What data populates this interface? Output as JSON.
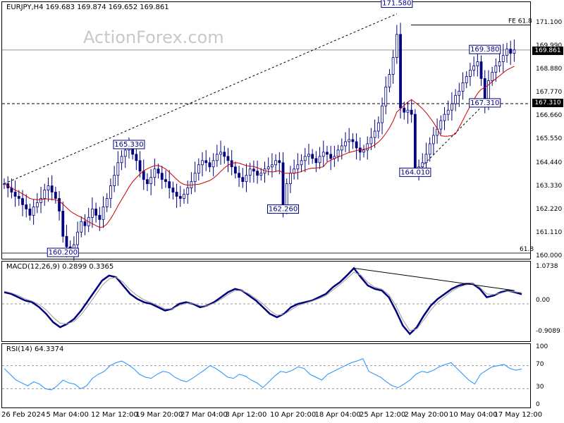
{
  "price_panel": {
    "header": "EURJPY,H4  169.683 169.874 169.652 169.861",
    "watermark": "ActionForex.com",
    "last_price_tag": "169.861",
    "support_tag": "167.310",
    "fe_label": "FE 61.8",
    "fib_label": "61.8",
    "annotations": [
      {
        "text": "171.580",
        "value": 171.58,
        "date_index": 107
      },
      {
        "text": "165.330",
        "value": 165.33,
        "date_index": 34
      },
      {
        "text": "169.380",
        "value": 169.38,
        "date_index": 131
      },
      {
        "text": "167.310",
        "value": 167.31,
        "date_index": 131
      },
      {
        "text": "164.010",
        "value": 164.01,
        "date_index": 112
      },
      {
        "text": "162.260",
        "value": 162.26,
        "date_index": 76
      },
      {
        "text": "160.200",
        "value": 160.2,
        "date_index": 16
      }
    ]
  },
  "macd_panel": {
    "header": "MACD(12,26,9) 0.2899 0.3365",
    "ticks": [
      "1.0738",
      "0.00",
      "-0.9089"
    ]
  },
  "rsi_panel": {
    "header": "RSI(14) 64.3374",
    "ticks": [
      "100",
      "70",
      "30",
      "0"
    ]
  },
  "price_ticks": [
    "171.100",
    "169.990",
    "168.880",
    "167.770",
    "166.660",
    "165.550",
    "164.440",
    "163.330",
    "162.220",
    "161.110",
    "160.000"
  ],
  "time_ticks": [
    "26 Feb 2024",
    "5 Mar 04:00",
    "12 Mar 12:00",
    "19 Mar 20:00",
    "27 Mar 04:00",
    "3 Apr 12:00",
    "10 Apr 20:00",
    "18 Apr 04:00",
    "25 Apr 12:00",
    "2 May 20:00",
    "10 May 04:00",
    "17 May 12:00"
  ],
  "colors": {
    "candle": "#000080",
    "ma": "#cc0000",
    "macd": "#000080",
    "signal": "#999999",
    "rsi": "#1e90ff",
    "tag_bg": "#000000",
    "tag_fg": "#ffffff"
  },
  "chart_data": [
    {
      "type": "candlestick",
      "title": "EURJPY,H4",
      "ylim": [
        160.0,
        171.8
      ],
      "horizontal_levels": [
        171.05,
        169.861,
        167.31,
        160.2
      ],
      "trendlines": [
        {
          "from": [
            0,
            163.5
          ],
          "to": [
            107,
            171.58
          ]
        },
        {
          "from": [
            112,
            164.01
          ],
          "to": [
            131,
            167.31
          ]
        }
      ],
      "close": [
        163.5,
        163.3,
        163.1,
        162.9,
        162.8,
        162.5,
        162.3,
        162.0,
        162.4,
        162.6,
        162.8,
        163.2,
        163.4,
        163.1,
        162.8,
        162.2,
        161.0,
        160.5,
        160.4,
        160.6,
        161.2,
        161.7,
        161.5,
        161.9,
        162.3,
        162.0,
        161.8,
        162.4,
        162.8,
        163.4,
        163.9,
        164.5,
        164.8,
        165.1,
        165.2,
        164.9,
        164.6,
        164.1,
        163.7,
        163.5,
        163.8,
        164.2,
        164.0,
        163.7,
        163.6,
        163.3,
        163.1,
        162.9,
        162.8,
        163.0,
        163.3,
        163.6,
        164.0,
        164.4,
        164.6,
        164.5,
        164.3,
        164.6,
        164.9,
        165.0,
        164.8,
        164.6,
        164.3,
        164.0,
        163.8,
        163.6,
        163.9,
        164.2,
        164.1,
        163.9,
        164.0,
        164.2,
        164.3,
        164.4,
        164.6,
        164.5,
        162.3,
        163.5,
        164.0,
        164.2,
        164.4,
        164.6,
        164.8,
        164.9,
        164.7,
        164.5,
        164.8,
        165.0,
        164.9,
        164.7,
        164.8,
        165.1,
        165.3,
        165.5,
        165.6,
        165.5,
        165.2,
        165.0,
        165.1,
        165.4,
        165.7,
        166.0,
        166.4,
        167.2,
        168.1,
        168.7,
        169.5,
        170.6,
        167.1,
        166.9,
        167.0,
        166.8,
        164.1,
        164.3,
        164.5,
        164.9,
        165.4,
        165.8,
        166.1,
        166.5,
        166.8,
        167.0,
        167.3,
        167.7,
        167.9,
        168.3,
        168.6,
        168.9,
        169.1,
        169.3,
        168.5,
        167.4,
        168.4,
        168.8,
        169.1,
        169.3,
        169.6,
        169.9,
        169.7,
        169.86
      ],
      "moving_average_color": "#cc0000"
    },
    {
      "type": "line",
      "title": "MACD(12,26,9)",
      "ylim": [
        -0.95,
        1.1
      ],
      "series": [
        {
          "name": "MACD",
          "values": [
            0.35,
            0.3,
            0.2,
            0.1,
            0.05,
            -0.1,
            -0.3,
            -0.55,
            -0.7,
            -0.6,
            -0.45,
            -0.2,
            0.1,
            0.4,
            0.7,
            0.85,
            0.8,
            0.55,
            0.3,
            0.15,
            0.05,
            0.0,
            -0.1,
            -0.2,
            -0.15,
            0.0,
            0.05,
            0.0,
            -0.1,
            -0.05,
            0.05,
            0.2,
            0.35,
            0.45,
            0.4,
            0.25,
            0.1,
            -0.1,
            -0.3,
            -0.4,
            -0.3,
            -0.1,
            0.0,
            0.05,
            0.1,
            0.2,
            0.3,
            0.5,
            0.65,
            0.85,
            1.07,
            0.8,
            0.55,
            0.45,
            0.4,
            0.2,
            -0.2,
            -0.65,
            -0.9,
            -0.7,
            -0.35,
            -0.05,
            0.15,
            0.3,
            0.45,
            0.55,
            0.6,
            0.6,
            0.45,
            0.2,
            0.25,
            0.35,
            0.4,
            0.35,
            0.29
          ]
        },
        {
          "name": "Signal",
          "values": [
            0.38,
            0.33,
            0.25,
            0.15,
            0.08,
            -0.02,
            -0.18,
            -0.4,
            -0.58,
            -0.6,
            -0.52,
            -0.32,
            -0.05,
            0.25,
            0.55,
            0.75,
            0.8,
            0.65,
            0.42,
            0.25,
            0.12,
            0.04,
            -0.05,
            -0.15,
            -0.15,
            -0.05,
            0.02,
            0.02,
            -0.06,
            -0.06,
            0.02,
            0.14,
            0.28,
            0.4,
            0.4,
            0.3,
            0.16,
            0.0,
            -0.2,
            -0.34,
            -0.32,
            -0.18,
            -0.05,
            0.02,
            0.08,
            0.16,
            0.25,
            0.42,
            0.58,
            0.76,
            0.95,
            0.86,
            0.64,
            0.5,
            0.44,
            0.28,
            -0.05,
            -0.48,
            -0.8,
            -0.75,
            -0.48,
            -0.18,
            0.05,
            0.22,
            0.38,
            0.5,
            0.57,
            0.6,
            0.5,
            0.3,
            0.28,
            0.32,
            0.38,
            0.36,
            0.34
          ]
        }
      ]
    },
    {
      "type": "line",
      "title": "RSI(14)",
      "ylim": [
        0,
        100
      ],
      "series": [
        {
          "name": "RSI",
          "values": [
            65,
            55,
            45,
            40,
            35,
            42,
            38,
            30,
            28,
            35,
            45,
            40,
            38,
            30,
            35,
            48,
            55,
            60,
            70,
            75,
            78,
            72,
            65,
            55,
            50,
            48,
            55,
            60,
            58,
            50,
            45,
            42,
            48,
            55,
            62,
            70,
            65,
            58,
            50,
            48,
            55,
            52,
            45,
            40,
            32,
            42,
            52,
            60,
            58,
            62,
            68,
            65,
            55,
            50,
            45,
            55,
            60,
            65,
            70,
            75,
            78,
            82,
            60,
            55,
            50,
            42,
            35,
            32,
            38,
            45,
            55,
            60,
            58,
            62,
            68,
            72,
            75,
            65,
            55,
            45,
            38,
            55,
            62,
            68,
            70,
            72,
            65,
            62,
            64
          ]
        }
      ]
    }
  ]
}
